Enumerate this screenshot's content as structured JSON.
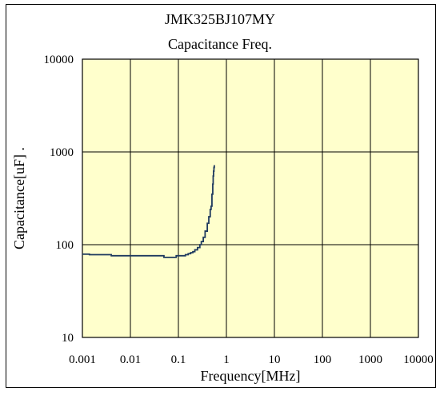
{
  "chart_data": {
    "type": "line",
    "title": "JMK325BJ107MY",
    "subtitle": "Capacitance Freq.",
    "xlabel": "Frequency[MHz]",
    "ylabel": "Capacitance[uF] .",
    "x_scale": "log",
    "y_scale": "log",
    "xlim": [
      0.001,
      10000
    ],
    "ylim": [
      10,
      10000
    ],
    "x_ticks": [
      "0.001",
      "0.01",
      "0.1",
      "1",
      "10",
      "100",
      "1000",
      "10000"
    ],
    "y_ticks": [
      "10",
      "100",
      "1000",
      "10000"
    ],
    "grid": true,
    "plot_background": "#FFFFCC",
    "line_color": "#1F3A5F",
    "series": [
      {
        "x": [
          0.001,
          0.0012,
          0.0014,
          0.002,
          0.003,
          0.004,
          0.006,
          0.01,
          0.02,
          0.03,
          0.04,
          0.05,
          0.06,
          0.07,
          0.08,
          0.09,
          0.1,
          0.12,
          0.14,
          0.16,
          0.18,
          0.2,
          0.22,
          0.25,
          0.28,
          0.3,
          0.33,
          0.36,
          0.4,
          0.43,
          0.46,
          0.48,
          0.5,
          0.52,
          0.53,
          0.54,
          0.55,
          0.56
        ],
        "y": [
          79,
          79,
          78,
          78,
          78,
          76,
          76,
          76,
          76,
          76,
          76,
          73,
          73,
          73,
          73,
          76,
          76,
          76,
          78,
          80,
          82,
          84,
          88,
          93,
          100,
          108,
          120,
          140,
          170,
          200,
          240,
          260,
          350,
          450,
          550,
          620,
          680,
          720
        ]
      }
    ]
  }
}
